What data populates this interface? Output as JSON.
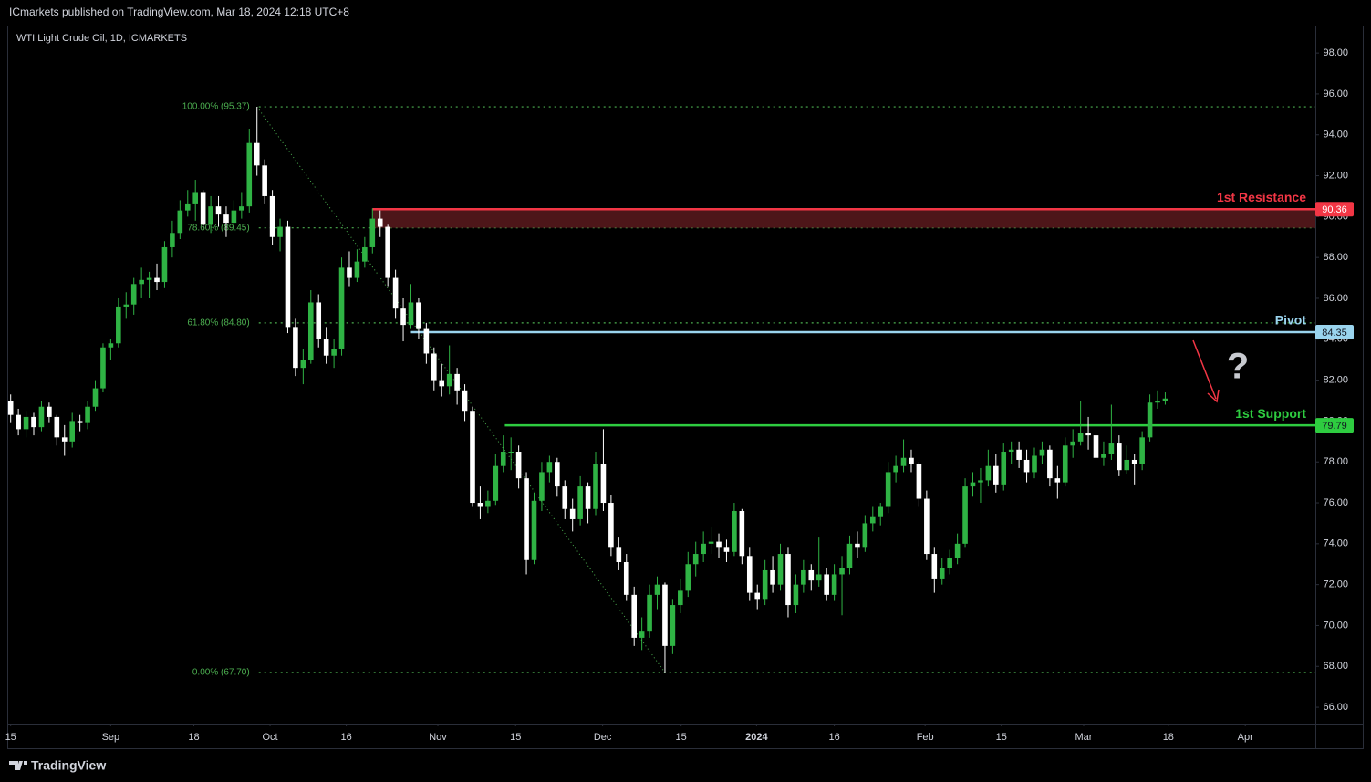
{
  "header": "ICmarkets published on TradingView.com, Mar 18, 2024 12:18 UTC+8",
  "footer": "TradingView",
  "chart_data": {
    "type": "candlestick",
    "title": "WTI Light Crude Oil, 1D, ICMARKETS",
    "up_color": "#2fb344",
    "down_color": "#ffffff",
    "ylim": [
      65.2,
      99.3
    ],
    "yticks": [
      {
        "value": 66,
        "label": "66.00"
      },
      {
        "value": 68,
        "label": "68.00"
      },
      {
        "value": 70,
        "label": "70.00"
      },
      {
        "value": 72,
        "label": "72.00"
      },
      {
        "value": 74,
        "label": "74.00"
      },
      {
        "value": 76,
        "label": "76.00"
      },
      {
        "value": 78,
        "label": "78.00"
      },
      {
        "value": 80,
        "label": "80.00"
      },
      {
        "value": 82,
        "label": "82.00"
      },
      {
        "value": 84,
        "label": "84.00"
      },
      {
        "value": 86,
        "label": "86.00"
      },
      {
        "value": 88,
        "label": "88.00"
      },
      {
        "value": 90,
        "label": "90.00"
      },
      {
        "value": 92,
        "label": "92.00"
      },
      {
        "value": 94,
        "label": "94.00"
      },
      {
        "value": 96,
        "label": "96.00"
      },
      {
        "value": 98,
        "label": "98.00"
      }
    ],
    "xlim": [
      -0.2,
      169.5
    ],
    "xticks": [
      {
        "value": 0,
        "label": "15"
      },
      {
        "value": 13,
        "label": "Sep"
      },
      {
        "value": 23.8,
        "label": "18"
      },
      {
        "value": 33.7,
        "label": "Oct"
      },
      {
        "value": 43.6,
        "label": "16"
      },
      {
        "value": 55.5,
        "label": "Nov"
      },
      {
        "value": 65.6,
        "label": "15"
      },
      {
        "value": 76.9,
        "label": "Dec"
      },
      {
        "value": 87.1,
        "label": "15"
      },
      {
        "value": 96.9,
        "label": "2024"
      },
      {
        "value": 107,
        "label": "16"
      },
      {
        "value": 118.8,
        "label": "Feb"
      },
      {
        "value": 128.7,
        "label": "15"
      },
      {
        "value": 139.4,
        "label": "Mar"
      },
      {
        "value": 150.4,
        "label": "18"
      },
      {
        "value": 160.4,
        "label": "Apr"
      }
    ],
    "fib": [
      {
        "label": "100.00% (95.37)",
        "value": 95.37
      },
      {
        "label": "78.60% (89.45)",
        "value": 89.45
      },
      {
        "label": "61.80% (84.80)",
        "value": 84.8
      },
      {
        "label": "0.00% (67.70)",
        "value": 67.7
      }
    ],
    "fib_color": "#4caf50",
    "levels": [
      {
        "name": "1st Resistance",
        "value": 90.36,
        "color": "#f23645"
      },
      {
        "name": "Pivot",
        "value": 84.35,
        "color": "#9ad4ee"
      },
      {
        "name": "1st Support",
        "value": 79.79,
        "color": "#2ecc40"
      }
    ],
    "annotation": "?",
    "ohlc": [
      [
        81.0,
        81.3,
        79.9,
        80.3
      ],
      [
        80.3,
        80.6,
        79.3,
        79.6
      ],
      [
        79.6,
        80.5,
        79.2,
        80.2
      ],
      [
        80.2,
        80.4,
        79.3,
        79.7
      ],
      [
        79.7,
        81.0,
        79.5,
        80.7
      ],
      [
        80.7,
        80.9,
        79.9,
        80.2
      ],
      [
        80.2,
        80.3,
        78.8,
        79.2
      ],
      [
        79.2,
        79.8,
        78.3,
        79.0
      ],
      [
        79.0,
        80.4,
        78.7,
        80.0
      ],
      [
        80.0,
        80.3,
        79.5,
        79.9
      ],
      [
        79.9,
        81.0,
        79.6,
        80.7
      ],
      [
        80.7,
        82.0,
        80.5,
        81.6
      ],
      [
        81.6,
        83.8,
        81.4,
        83.6
      ],
      [
        83.6,
        84.0,
        83.0,
        83.8
      ],
      [
        83.8,
        86.0,
        83.6,
        85.6
      ],
      [
        85.6,
        86.3,
        85.0,
        85.7
      ],
      [
        85.7,
        87.0,
        85.2,
        86.7
      ],
      [
        86.7,
        87.5,
        86.0,
        86.9
      ],
      [
        86.9,
        87.3,
        86.0,
        87.0
      ],
      [
        87.0,
        87.7,
        86.4,
        86.8
      ],
      [
        86.8,
        88.8,
        86.5,
        88.5
      ],
      [
        88.5,
        89.8,
        88.0,
        89.2
      ],
      [
        89.2,
        90.8,
        88.9,
        90.3
      ],
      [
        90.3,
        91.3,
        90.0,
        90.6
      ],
      [
        90.6,
        91.8,
        89.8,
        91.2
      ],
      [
        91.2,
        91.3,
        89.4,
        89.6
      ],
      [
        89.6,
        91.0,
        89.2,
        90.5
      ],
      [
        90.5,
        91.0,
        89.5,
        90.1
      ],
      [
        90.1,
        90.5,
        89.0,
        89.7
      ],
      [
        89.7,
        90.8,
        89.3,
        90.3
      ],
      [
        90.3,
        91.2,
        89.9,
        90.5
      ],
      [
        90.5,
        94.3,
        90.2,
        93.6
      ],
      [
        93.6,
        95.37,
        92.0,
        92.5
      ],
      [
        92.5,
        92.8,
        90.6,
        91.0
      ],
      [
        91.0,
        91.3,
        88.6,
        89.0
      ],
      [
        89.0,
        89.9,
        88.3,
        89.5
      ],
      [
        89.5,
        89.8,
        84.3,
        84.6
      ],
      [
        84.6,
        85.0,
        82.2,
        82.6
      ],
      [
        82.6,
        83.5,
        81.8,
        83.0
      ],
      [
        83.0,
        86.4,
        82.8,
        85.8
      ],
      [
        85.8,
        86.2,
        83.6,
        84.0
      ],
      [
        84.0,
        84.6,
        82.8,
        83.2
      ],
      [
        83.2,
        84.0,
        82.6,
        83.5
      ],
      [
        83.5,
        88.0,
        83.2,
        87.5
      ],
      [
        87.5,
        88.3,
        86.6,
        87.0
      ],
      [
        87.0,
        88.4,
        86.8,
        87.8
      ],
      [
        87.8,
        89.0,
        87.5,
        88.5
      ],
      [
        88.5,
        90.4,
        88.2,
        89.9
      ],
      [
        89.9,
        90.3,
        89.0,
        89.5
      ],
      [
        89.5,
        89.6,
        86.6,
        87.0
      ],
      [
        87.0,
        87.4,
        85.0,
        85.5
      ],
      [
        85.5,
        86.0,
        83.9,
        84.7
      ],
      [
        84.7,
        86.7,
        84.5,
        85.8
      ],
      [
        85.8,
        86.0,
        84.0,
        84.5
      ],
      [
        84.5,
        84.8,
        82.8,
        83.3
      ],
      [
        83.3,
        83.6,
        81.5,
        82.0
      ],
      [
        82.0,
        82.8,
        81.2,
        81.7
      ],
      [
        81.7,
        83.7,
        81.3,
        82.3
      ],
      [
        82.3,
        82.6,
        80.8,
        81.5
      ],
      [
        81.5,
        81.8,
        80.0,
        80.5
      ],
      [
        80.5,
        80.7,
        75.8,
        76.0
      ],
      [
        76.0,
        76.8,
        75.2,
        75.8
      ],
      [
        75.8,
        76.6,
        75.5,
        76.1
      ],
      [
        76.1,
        78.4,
        75.9,
        77.8
      ],
      [
        77.8,
        79.3,
        77.5,
        78.5
      ],
      [
        78.5,
        79.2,
        77.6,
        78.5
      ],
      [
        78.5,
        78.8,
        76.7,
        77.2
      ],
      [
        77.2,
        77.5,
        72.5,
        73.2
      ],
      [
        73.2,
        76.5,
        73.0,
        76.1
      ],
      [
        76.1,
        78.0,
        75.6,
        77.5
      ],
      [
        77.5,
        78.3,
        77.0,
        78.0
      ],
      [
        78.0,
        78.2,
        76.3,
        76.8
      ],
      [
        76.8,
        77.1,
        75.2,
        75.7
      ],
      [
        75.7,
        76.2,
        74.6,
        75.2
      ],
      [
        75.2,
        77.3,
        74.9,
        76.8
      ],
      [
        76.8,
        77.0,
        75.0,
        75.7
      ],
      [
        75.7,
        78.5,
        75.4,
        77.9
      ],
      [
        77.9,
        79.6,
        75.6,
        76.0
      ],
      [
        76.0,
        76.4,
        73.4,
        73.8
      ],
      [
        73.8,
        74.3,
        72.7,
        73.1
      ],
      [
        73.1,
        73.5,
        71.2,
        71.5
      ],
      [
        71.5,
        71.9,
        69.0,
        69.4
      ],
      [
        69.4,
        70.4,
        68.8,
        69.7
      ],
      [
        69.7,
        72.0,
        69.4,
        71.5
      ],
      [
        71.5,
        72.4,
        70.8,
        72.0
      ],
      [
        72.0,
        72.1,
        67.7,
        69.0
      ],
      [
        69.0,
        71.3,
        68.6,
        71.0
      ],
      [
        71.0,
        72.3,
        70.6,
        71.7
      ],
      [
        71.7,
        73.6,
        71.4,
        73.0
      ],
      [
        73.0,
        74.1,
        72.4,
        73.5
      ],
      [
        73.5,
        74.6,
        73.1,
        74.0
      ],
      [
        74.0,
        74.8,
        73.5,
        74.1
      ],
      [
        74.1,
        74.5,
        73.3,
        73.8
      ],
      [
        73.8,
        74.2,
        73.1,
        73.6
      ],
      [
        73.6,
        76.0,
        73.4,
        75.6
      ],
      [
        75.6,
        75.7,
        73.0,
        73.4
      ],
      [
        73.4,
        73.8,
        71.2,
        71.6
      ],
      [
        71.6,
        72.0,
        70.8,
        71.3
      ],
      [
        71.3,
        73.2,
        71.0,
        72.7
      ],
      [
        72.7,
        73.4,
        71.6,
        72.0
      ],
      [
        72.0,
        74.0,
        71.7,
        73.5
      ],
      [
        73.5,
        73.8,
        70.4,
        71.0
      ],
      [
        71.0,
        72.5,
        70.6,
        72.0
      ],
      [
        72.0,
        73.2,
        71.6,
        72.7
      ],
      [
        72.7,
        73.0,
        71.7,
        72.2
      ],
      [
        72.2,
        74.3,
        71.9,
        72.5
      ],
      [
        72.5,
        72.8,
        71.2,
        71.5
      ],
      [
        71.5,
        73.0,
        71.2,
        72.5
      ],
      [
        72.5,
        73.4,
        70.5,
        72.8
      ],
      [
        72.8,
        74.4,
        72.5,
        74.0
      ],
      [
        74.0,
        74.6,
        73.3,
        73.8
      ],
      [
        73.8,
        75.4,
        73.6,
        75.0
      ],
      [
        75.0,
        75.8,
        74.6,
        75.3
      ],
      [
        75.3,
        76.0,
        74.9,
        75.8
      ],
      [
        75.8,
        78.0,
        75.5,
        77.5
      ],
      [
        77.5,
        78.3,
        77.0,
        77.8
      ],
      [
        77.8,
        79.1,
        77.5,
        78.2
      ],
      [
        78.2,
        78.6,
        77.5,
        77.9
      ],
      [
        77.9,
        78.0,
        75.8,
        76.2
      ],
      [
        76.2,
        76.6,
        73.2,
        73.5
      ],
      [
        73.5,
        73.8,
        71.6,
        72.3
      ],
      [
        72.3,
        73.3,
        72.0,
        72.8
      ],
      [
        72.8,
        73.7,
        72.5,
        73.3
      ],
      [
        73.3,
        74.5,
        73.0,
        74.0
      ],
      [
        74.0,
        77.2,
        73.8,
        76.8
      ],
      [
        76.8,
        77.5,
        76.3,
        77.0
      ],
      [
        77.0,
        77.7,
        76.0,
        77.1
      ],
      [
        77.1,
        78.6,
        76.8,
        77.8
      ],
      [
        77.8,
        78.4,
        76.5,
        76.9
      ],
      [
        76.9,
        78.9,
        76.6,
        78.5
      ],
      [
        78.5,
        79.0,
        77.9,
        78.6
      ],
      [
        78.6,
        79.0,
        77.7,
        78.1
      ],
      [
        78.1,
        78.6,
        77.0,
        77.5
      ],
      [
        77.5,
        78.7,
        77.2,
        78.3
      ],
      [
        78.3,
        79.0,
        77.9,
        78.6
      ],
      [
        78.6,
        78.8,
        76.8,
        77.2
      ],
      [
        77.2,
        77.8,
        76.2,
        77.0
      ],
      [
        77.0,
        79.2,
        76.8,
        78.8
      ],
      [
        78.8,
        79.6,
        78.2,
        79.0
      ],
      [
        79.0,
        81.0,
        78.8,
        79.4
      ],
      [
        79.4,
        80.2,
        78.6,
        79.3
      ],
      [
        79.3,
        79.6,
        77.9,
        78.2
      ],
      [
        78.2,
        79.0,
        77.8,
        78.4
      ],
      [
        78.4,
        80.8,
        78.1,
        78.9
      ],
      [
        78.9,
        79.3,
        77.3,
        77.6
      ],
      [
        77.6,
        78.8,
        77.4,
        78.1
      ],
      [
        78.1,
        78.4,
        76.9,
        77.9
      ],
      [
        77.9,
        79.5,
        77.6,
        79.2
      ],
      [
        79.2,
        81.3,
        79.0,
        80.9
      ],
      [
        80.9,
        81.5,
        80.6,
        81.0
      ],
      [
        81.0,
        81.4,
        80.8,
        81.1
      ]
    ]
  }
}
